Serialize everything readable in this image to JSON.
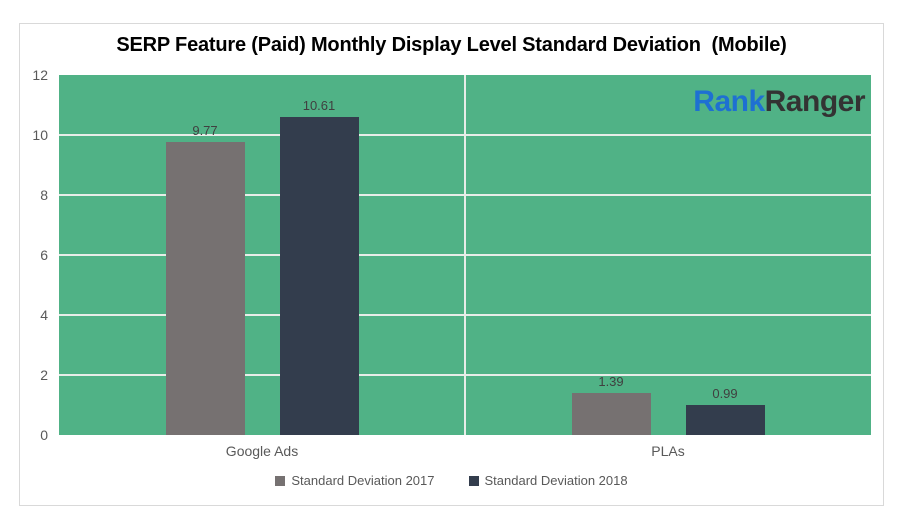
{
  "page": {
    "background": "#FFFFFF",
    "frame_border_color": "#D9D9D9"
  },
  "logo": {
    "text_blue": "Rank",
    "text_dark": "Ranger",
    "blue_color": "#1E70D2",
    "dark_color": "#333333"
  },
  "chart_data": {
    "type": "bar",
    "title": "SERP Feature (Paid) Monthly Display Level Standard Deviation  (Mobile)",
    "categories": [
      "Google Ads",
      "PLAs"
    ],
    "series": [
      {
        "name": "Standard Deviation 2017",
        "color": "#767171",
        "values": [
          9.77,
          1.39
        ]
      },
      {
        "name": "Standard Deviation 2018",
        "color": "#333D4D",
        "values": [
          10.61,
          0.99
        ]
      }
    ],
    "ylim": [
      0,
      12
    ],
    "yticks": [
      0,
      2,
      4,
      6,
      8,
      10,
      12
    ],
    "grid": true,
    "gridline_color": "#E7EDE8",
    "plot_background": "#50B286",
    "legend_position": "bottom",
    "data_label_decimals": 2,
    "xlabel": "",
    "ylabel": ""
  }
}
